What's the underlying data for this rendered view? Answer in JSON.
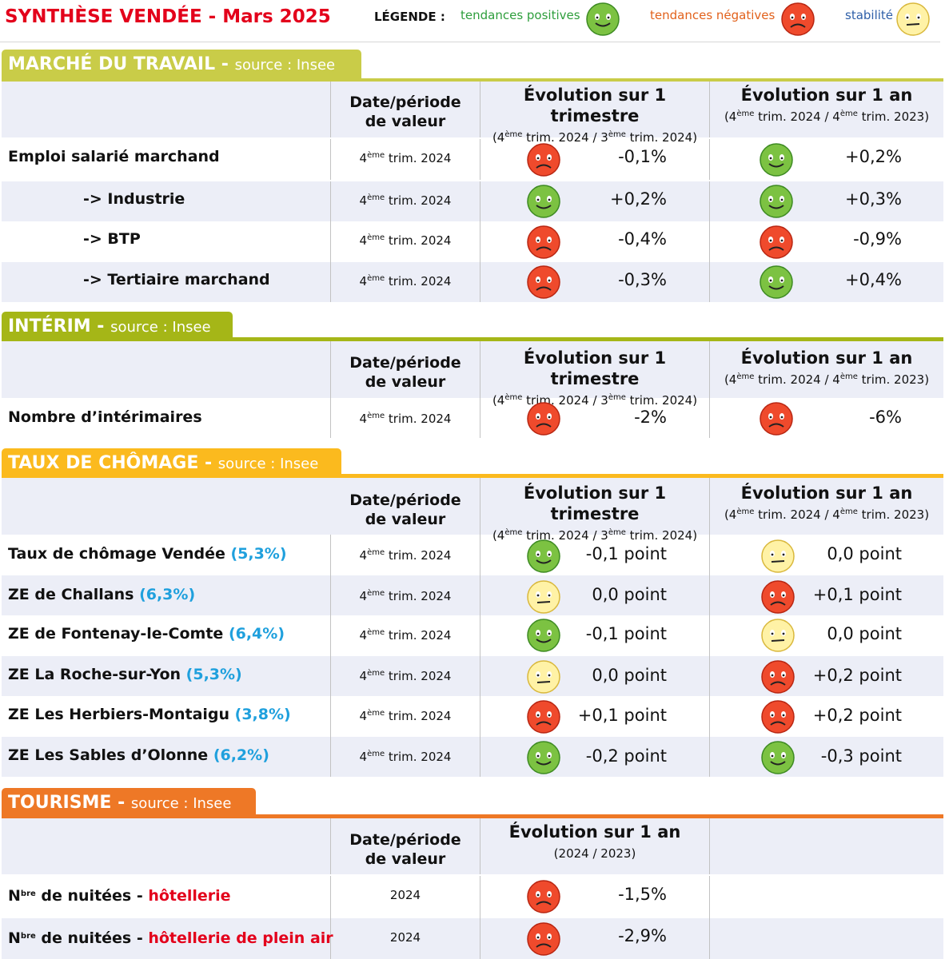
{
  "title": "SYNTHÈSE VENDÉE - Mars 2025",
  "legend": {
    "label": "LÉGENDE :",
    "positive": "tendances positives",
    "negative": "tendances négatives",
    "stable": "stabilité",
    "colors": {
      "positive": "#2e9e3c",
      "negative": "#e2611b",
      "stable": "#2e5fa8"
    }
  },
  "common": {
    "date_header_line1": "Date/période",
    "date_header_line2": "de valeur",
    "quarter_header": "Évolution sur 1 trimestre",
    "quarter_sub_a": "(4",
    "quarter_sub_b": "ème",
    "quarter_sub_c": " trim. 2024 / 3",
    "quarter_sub_d": "ème",
    "quarter_sub_e": " trim. 2024)",
    "year_header": "Évolution sur 1 an",
    "year_sub_a": "(4",
    "year_sub_b": "ème",
    "year_sub_c": " trim. 2024 / 4",
    "year_sub_d": "ème",
    "year_sub_e": " trim. 2023)",
    "date_num": "4",
    "date_sup": "ème",
    "date_rest": " trim. 2024",
    "source": "source : Insee"
  },
  "sections": {
    "marche": {
      "title": "MARCHÉ DU TRAVAIL - ",
      "color": "#c9cc48",
      "rows": [
        {
          "label": "Emploi salarié marchand",
          "q_trend": "negative",
          "q_value": "-0,1%",
          "y_trend": "positive",
          "y_value": "+0,2%"
        },
        {
          "label": "-> Industrie",
          "q_trend": "positive",
          "q_value": "+0,2%",
          "y_trend": "positive",
          "y_value": "+0,3%"
        },
        {
          "label": "-> BTP",
          "q_trend": "negative",
          "q_value": "-0,4%",
          "y_trend": "negative",
          "y_value": "-0,9%"
        },
        {
          "label": "-> Tertiaire marchand",
          "q_trend": "negative",
          "q_value": "-0,3%",
          "y_trend": "positive",
          "y_value": "+0,4%"
        }
      ]
    },
    "interim": {
      "title": "INTÉRIM - ",
      "color": "#a5b617",
      "rows": [
        {
          "label": "Nombre d’intérimaires",
          "q_trend": "negative",
          "q_value": "-2%",
          "y_trend": "negative",
          "y_value": "-6%"
        }
      ]
    },
    "chomage": {
      "title": "TAUX DE CHÔMAGE - ",
      "color": "#fbba1e",
      "rows": [
        {
          "label": "Taux de chômage Vendée ",
          "rate": "(5,3%)",
          "q_trend": "positive",
          "q_value": "-0,1 point",
          "y_trend": "stable",
          "y_value": "0,0 point"
        },
        {
          "label": "ZE de Challans ",
          "rate": "(6,3%)",
          "q_trend": "stable",
          "q_value": "0,0 point",
          "y_trend": "negative",
          "y_value": "+0,1 point"
        },
        {
          "label": "ZE de Fontenay-le-Comte ",
          "rate": "(6,4%)",
          "q_trend": "positive",
          "q_value": "-0,1 point",
          "y_trend": "stable",
          "y_value": "0,0 point"
        },
        {
          "label": "ZE La Roche-sur-Yon ",
          "rate": "(5,3%)",
          "q_trend": "stable",
          "q_value": "0,0 point",
          "y_trend": "negative",
          "y_value": "+0,2 point"
        },
        {
          "label": "ZE Les Herbiers-Montaigu ",
          "rate": "(3,8%)",
          "q_trend": "negative",
          "q_value": "+0,1 point",
          "y_trend": "negative",
          "y_value": "+0,2 point"
        },
        {
          "label": "ZE Les Sables d’Olonne ",
          "rate": "(6,2%)",
          "q_trend": "positive",
          "q_value": "-0,2 point",
          "y_trend": "positive",
          "y_value": "-0,3 point"
        }
      ]
    },
    "tourisme": {
      "title": "TOURISME - ",
      "color": "#ee7826",
      "header": "Évolution sur 1 an",
      "sub": "(2024 / 2023)",
      "rows": [
        {
          "label_a": "N",
          "label_sup": "bre",
          "label_b": " de nuitées - ",
          "label_red": "hôtellerie",
          "date": "2024",
          "trend": "negative",
          "value": "-1,5%"
        },
        {
          "label_a": "N",
          "label_sup": "bre",
          "label_b": " de nuitées - ",
          "label_red": "hôtellerie de plein air",
          "date": "2024",
          "trend": "negative",
          "value": "-2,9%"
        }
      ]
    }
  }
}
